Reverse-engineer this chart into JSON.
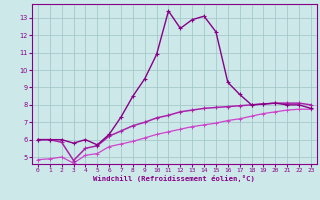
{
  "title": "",
  "xlabel": "Windchill (Refroidissement éolien,°C)",
  "bg_color": "#cce8e8",
  "grid_color": "#a0c4c4",
  "line1_color": "#880088",
  "line2_color": "#aa22aa",
  "line3_color": "#cc44cc",
  "xlim": [
    -0.5,
    23.5
  ],
  "ylim": [
    4.6,
    13.8
  ],
  "xticks": [
    0,
    1,
    2,
    3,
    4,
    5,
    6,
    7,
    8,
    9,
    10,
    11,
    12,
    13,
    14,
    15,
    16,
    17,
    18,
    19,
    20,
    21,
    22,
    23
  ],
  "yticks": [
    5,
    6,
    7,
    8,
    9,
    10,
    11,
    12,
    13
  ],
  "curve1_x": [
    0,
    1,
    2,
    3,
    4,
    5,
    6,
    7,
    8,
    9,
    10,
    11,
    12,
    13,
    14,
    15,
    16,
    17,
    18,
    19,
    20,
    21,
    22,
    23
  ],
  "curve1_y": [
    6.0,
    6.0,
    6.0,
    5.8,
    6.0,
    5.7,
    6.3,
    7.3,
    8.5,
    9.5,
    10.9,
    13.4,
    12.4,
    12.9,
    13.1,
    12.2,
    9.3,
    8.6,
    8.0,
    8.05,
    8.1,
    8.0,
    8.0,
    7.8
  ],
  "curve2_x": [
    0,
    1,
    2,
    3,
    4,
    5,
    6,
    7,
    8,
    9,
    10,
    11,
    12,
    13,
    14,
    15,
    16,
    17,
    18,
    19,
    20,
    21,
    22,
    23
  ],
  "curve2_y": [
    6.0,
    6.0,
    5.85,
    4.8,
    5.5,
    5.65,
    6.2,
    6.5,
    6.8,
    7.0,
    7.25,
    7.4,
    7.6,
    7.7,
    7.8,
    7.85,
    7.9,
    7.95,
    8.0,
    8.05,
    8.1,
    8.1,
    8.1,
    8.0
  ],
  "curve3_x": [
    0,
    1,
    2,
    3,
    4,
    5,
    6,
    7,
    8,
    9,
    10,
    11,
    12,
    13,
    14,
    15,
    16,
    17,
    18,
    19,
    20,
    21,
    22,
    23
  ],
  "curve3_y": [
    4.85,
    4.9,
    5.0,
    4.65,
    5.1,
    5.2,
    5.6,
    5.75,
    5.9,
    6.1,
    6.3,
    6.45,
    6.6,
    6.75,
    6.85,
    6.95,
    7.1,
    7.2,
    7.35,
    7.5,
    7.6,
    7.7,
    7.75,
    7.75
  ]
}
